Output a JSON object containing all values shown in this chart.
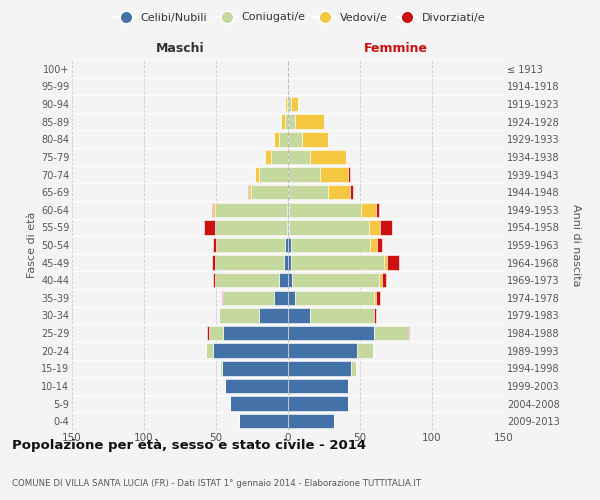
{
  "age_groups": [
    "0-4",
    "5-9",
    "10-14",
    "15-19",
    "20-24",
    "25-29",
    "30-34",
    "35-39",
    "40-44",
    "45-49",
    "50-54",
    "55-59",
    "60-64",
    "65-69",
    "70-74",
    "75-79",
    "80-84",
    "85-89",
    "90-94",
    "95-99",
    "100+"
  ],
  "birth_years": [
    "2009-2013",
    "2004-2008",
    "1999-2003",
    "1994-1998",
    "1989-1993",
    "1984-1988",
    "1979-1983",
    "1974-1978",
    "1969-1973",
    "1964-1968",
    "1959-1963",
    "1954-1958",
    "1949-1953",
    "1944-1948",
    "1939-1943",
    "1934-1938",
    "1929-1933",
    "1924-1928",
    "1919-1923",
    "1914-1918",
    "≤ 1913"
  ],
  "male": {
    "celibi": [
      34,
      40,
      44,
      46,
      52,
      45,
      20,
      10,
      6,
      3,
      2,
      1,
      1,
      0,
      0,
      0,
      0,
      0,
      0,
      0,
      0
    ],
    "coniugati": [
      0,
      0,
      0,
      1,
      5,
      10,
      28,
      35,
      45,
      48,
      48,
      50,
      50,
      26,
      20,
      12,
      6,
      2,
      1,
      0,
      0
    ],
    "vedovi": [
      0,
      0,
      0,
      0,
      0,
      0,
      0,
      0,
      0,
      0,
      0,
      0,
      1,
      1,
      3,
      4,
      4,
      3,
      1,
      0,
      0
    ],
    "divorziati": [
      0,
      0,
      0,
      0,
      0,
      1,
      0,
      1,
      1,
      2,
      2,
      7,
      1,
      1,
      0,
      0,
      0,
      0,
      0,
      0,
      0
    ]
  },
  "female": {
    "nubili": [
      32,
      42,
      42,
      44,
      48,
      60,
      15,
      5,
      3,
      2,
      2,
      1,
      1,
      0,
      0,
      0,
      0,
      0,
      0,
      0,
      0
    ],
    "coniugate": [
      0,
      0,
      0,
      3,
      11,
      23,
      45,
      55,
      60,
      65,
      55,
      55,
      50,
      28,
      22,
      15,
      10,
      5,
      2,
      0,
      0
    ],
    "vedove": [
      0,
      0,
      0,
      0,
      0,
      0,
      0,
      1,
      2,
      2,
      5,
      8,
      10,
      15,
      20,
      25,
      18,
      20,
      5,
      1,
      1
    ],
    "divorziate": [
      0,
      0,
      0,
      0,
      0,
      1,
      1,
      3,
      3,
      8,
      3,
      8,
      2,
      2,
      1,
      0,
      0,
      0,
      0,
      0,
      0
    ]
  },
  "colors": {
    "celibi": "#4472a8",
    "coniugati": "#c5d89e",
    "vedovi": "#f5c842",
    "divorziati": "#cc1111"
  },
  "title": "Popolazione per età, sesso e stato civile - 2014",
  "subtitle": "COMUNE DI VILLA SANTA LUCIA (FR) - Dati ISTAT 1° gennaio 2014 - Elaborazione TUTTITALIA.IT",
  "xlabel_left": "Maschi",
  "xlabel_right": "Femmine",
  "ylabel_left": "Fasce di età",
  "ylabel_right": "Anni di nascita",
  "legend_labels": [
    "Celibi/Nubili",
    "Coniugati/e",
    "Vedovi/e",
    "Divorziati/e"
  ],
  "xlim": 150,
  "bg_color": "#f4f4f4",
  "grid_color": "#cccccc"
}
